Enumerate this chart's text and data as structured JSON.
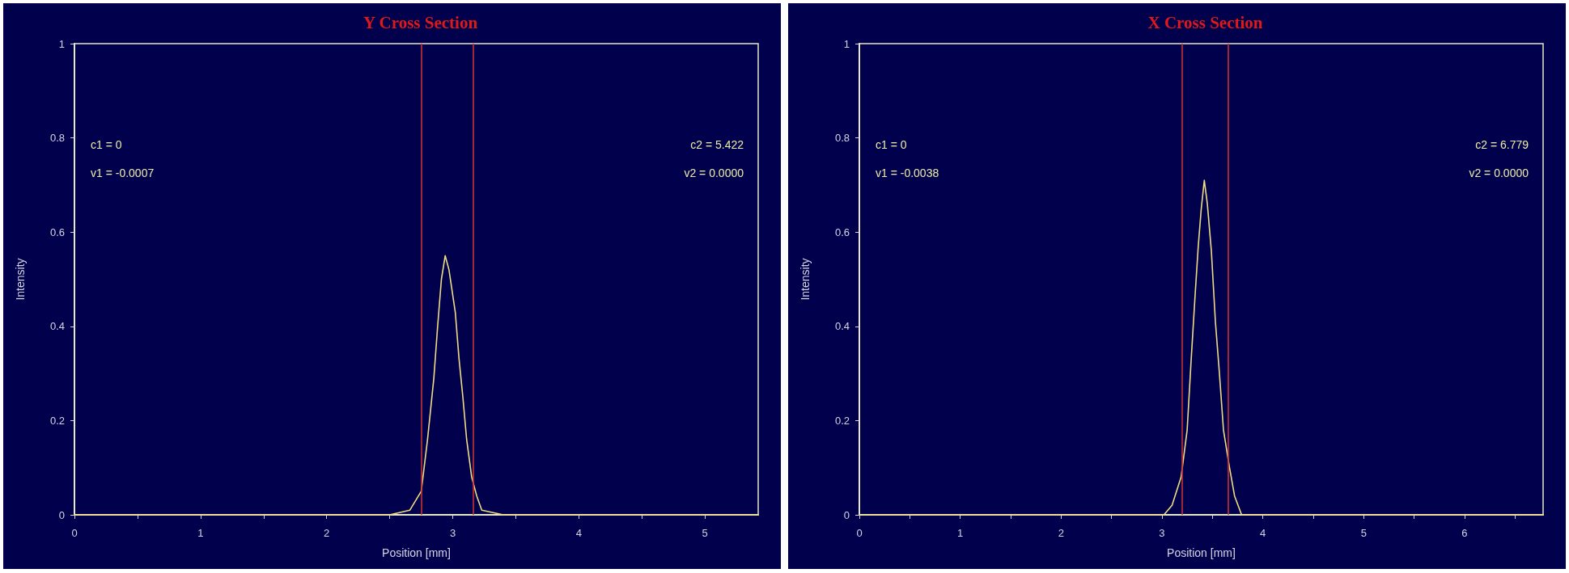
{
  "chart_data": [
    {
      "type": "line",
      "title": "Y Cross Section",
      "xlabel": "Position [mm]",
      "ylabel": "Intensity",
      "annotations": [
        "c1 = 0",
        "v1 = -0.0007",
        "c2 = 5.422",
        "v2 = 0.0000"
      ],
      "x": [
        0,
        0.5,
        1,
        1.5,
        2,
        2.5,
        2.66,
        2.75,
        2.8,
        2.85,
        2.88,
        2.91,
        2.94,
        2.97,
        3.02,
        3.05,
        3.08,
        3.11,
        3.15,
        3.19,
        3.23,
        3.4,
        4,
        4.5,
        5,
        5.422
      ],
      "values": [
        0,
        0,
        0,
        0,
        0,
        0,
        0.01,
        0.05,
        0.16,
        0.29,
        0.4,
        0.5,
        0.55,
        0.52,
        0.43,
        0.33,
        0.25,
        0.16,
        0.08,
        0.04,
        0.01,
        0,
        0,
        0,
        0,
        0
      ],
      "color": "#f0dc82",
      "marker": "none",
      "ref_lines": [
        {
          "axis": "x",
          "value": 2.75,
          "color": "#c83030"
        },
        {
          "axis": "x",
          "value": 3.16,
          "color": "#c83030"
        }
      ],
      "xlim": [
        0,
        5.422
      ],
      "xticks": [
        0,
        {
          "value": 0.5,
          "label": null
        },
        1,
        {
          "value": 1.5,
          "label": null
        },
        2,
        {
          "value": 2.5,
          "label": null
        },
        3,
        {
          "value": 3.5,
          "label": null
        },
        4,
        {
          "value": 4.5,
          "label": null
        },
        5
      ],
      "ylim": [
        0,
        1
      ],
      "yticks": [
        0,
        0.2,
        0.4,
        0.6,
        0.8,
        1
      ]
    },
    {
      "type": "line",
      "title": "X Cross Section",
      "xlabel": "Position [mm]",
      "ylabel": "Intensity",
      "annotations": [
        "c1 = 0",
        "v1 = -0.0038",
        "c2 = 6.779",
        "v2 = 0.0000"
      ],
      "x": [
        0,
        1,
        2,
        2.8,
        3.02,
        3.1,
        3.19,
        3.25,
        3.29,
        3.33,
        3.36,
        3.39,
        3.42,
        3.45,
        3.49,
        3.53,
        3.57,
        3.61,
        3.67,
        3.72,
        3.79,
        4,
        5,
        6,
        6.779
      ],
      "values": [
        0,
        0,
        0,
        0,
        0,
        0.02,
        0.08,
        0.18,
        0.33,
        0.47,
        0.57,
        0.65,
        0.71,
        0.66,
        0.56,
        0.41,
        0.3,
        0.18,
        0.1,
        0.04,
        0,
        0,
        0,
        0,
        0
      ],
      "color": "#f0dc82",
      "marker": "none",
      "ref_lines": [
        {
          "axis": "x",
          "value": 3.2,
          "color": "#c83030"
        },
        {
          "axis": "x",
          "value": 3.66,
          "color": "#c83030"
        }
      ],
      "xlim": [
        0,
        6.779
      ],
      "xticks": [
        0,
        {
          "value": 0.5,
          "label": null
        },
        1,
        {
          "value": 1.5,
          "label": null
        },
        2,
        {
          "value": 2.5,
          "label": null
        },
        3,
        {
          "value": 3.5,
          "label": null
        },
        4,
        {
          "value": 4.5,
          "label": null
        },
        5,
        {
          "value": 5.5,
          "label": null
        },
        6,
        {
          "value": 6.5,
          "label": null
        }
      ],
      "ylim": [
        0,
        1
      ],
      "yticks": [
        0,
        0.2,
        0.4,
        0.6,
        0.8,
        1
      ]
    }
  ]
}
